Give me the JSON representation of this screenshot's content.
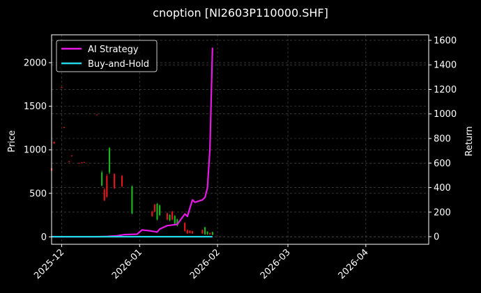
{
  "chart_data": {
    "type": "candlestick+line",
    "title": "cnoption [NI2603P110000.SHF]",
    "xlabel": "",
    "ylabel_left": "Price",
    "ylabel_right": "Return",
    "x_start": "2025-11-27",
    "x_end": "2026-04-26",
    "x_ticks": [
      "2025-12",
      "2026-01",
      "2026-02",
      "2026-03",
      "2026-04"
    ],
    "y_left_ticks": [
      0,
      500,
      1000,
      1500,
      2000
    ],
    "y_left_lim": [
      -85,
      2320
    ],
    "y_right_ticks": [
      0,
      200,
      400,
      600,
      800,
      1000,
      1200,
      1400,
      1600
    ],
    "y_right_lim": [
      -62,
      1645
    ],
    "grid": true,
    "legend_position": "top-left",
    "colors": {
      "background": "#000000",
      "up": "#1db31d",
      "down": "#e01818",
      "ai_strategy": "#e619e6",
      "buy_and_hold": "#22d8e6",
      "axis": "#ffffff",
      "grid": "#555555"
    },
    "series": [
      {
        "name": "AI Strategy",
        "points": [
          [
            "2025-11-27",
            0
          ],
          [
            "2025-12-01",
            0
          ],
          [
            "2025-12-15",
            0
          ],
          [
            "2025-12-19",
            2
          ],
          [
            "2025-12-23",
            7
          ],
          [
            "2025-12-26",
            17
          ],
          [
            "2025-12-31",
            20
          ],
          [
            "2026-01-02",
            55
          ],
          [
            "2026-01-05",
            48
          ],
          [
            "2026-01-08",
            38
          ],
          [
            "2026-01-09",
            62
          ],
          [
            "2026-01-12",
            90
          ],
          [
            "2026-01-14",
            95
          ],
          [
            "2026-01-16",
            100
          ],
          [
            "2026-01-19",
            185
          ],
          [
            "2026-01-20",
            165
          ],
          [
            "2026-01-22",
            300
          ],
          [
            "2026-01-23",
            280
          ],
          [
            "2026-01-26",
            300
          ],
          [
            "2026-01-27",
            320
          ],
          [
            "2026-01-28",
            398
          ],
          [
            "2026-01-29",
            720
          ],
          [
            "2026-01-30",
            1540
          ]
        ]
      },
      {
        "name": "Buy-and-Hold",
        "points": [
          [
            "2025-11-27",
            0
          ],
          [
            "2026-01-30",
            0
          ]
        ]
      }
    ],
    "candles": [
      {
        "date": "2025-11-27",
        "open": 790,
        "close": 760,
        "high": 790,
        "low": 760
      },
      {
        "date": "2025-11-28",
        "open": 1090,
        "close": 1070,
        "high": 1095,
        "low": 1070
      },
      {
        "date": "2025-12-01",
        "open": 1720,
        "close": 1710,
        "high": 1720,
        "low": 1710
      },
      {
        "date": "2025-12-02",
        "open": 1260,
        "close": 1250,
        "high": 1260,
        "low": 1250
      },
      {
        "date": "2025-12-04",
        "open": 870,
        "close": 860,
        "high": 870,
        "low": 860
      },
      {
        "date": "2025-12-05",
        "open": 935,
        "close": 925,
        "high": 935,
        "low": 925
      },
      {
        "date": "2025-12-08",
        "open": 850,
        "close": 845,
        "high": 850,
        "low": 845
      },
      {
        "date": "2025-12-09",
        "open": 855,
        "close": 850,
        "high": 855,
        "low": 850
      },
      {
        "date": "2025-12-10",
        "open": 860,
        "close": 855,
        "high": 860,
        "low": 855
      },
      {
        "date": "2025-12-15",
        "open": 1405,
        "close": 1400,
        "high": 1405,
        "low": 1400
      },
      {
        "date": "2025-12-17",
        "open": 590,
        "close": 740,
        "high": 760,
        "low": 580
      },
      {
        "date": "2025-12-18",
        "open": 540,
        "close": 420,
        "high": 560,
        "low": 410
      },
      {
        "date": "2025-12-19",
        "open": 700,
        "close": 460,
        "high": 720,
        "low": 450
      },
      {
        "date": "2025-12-20",
        "open": 740,
        "close": 1020,
        "high": 1030,
        "low": 720
      },
      {
        "date": "2025-12-22",
        "open": 720,
        "close": 560,
        "high": 730,
        "low": 550
      },
      {
        "date": "2025-12-25",
        "open": 700,
        "close": 580,
        "high": 710,
        "low": 570
      },
      {
        "date": "2025-12-29",
        "open": 270,
        "close": 580,
        "high": 590,
        "low": 260
      },
      {
        "date": "2026-01-06",
        "open": 290,
        "close": 240,
        "high": 300,
        "low": 230
      },
      {
        "date": "2026-01-07",
        "open": 370,
        "close": 290,
        "high": 380,
        "low": 280
      },
      {
        "date": "2026-01-08",
        "open": 200,
        "close": 380,
        "high": 390,
        "low": 190
      },
      {
        "date": "2026-01-09",
        "open": 250,
        "close": 360,
        "high": 370,
        "low": 240
      },
      {
        "date": "2026-01-12",
        "open": 270,
        "close": 200,
        "high": 280,
        "low": 190
      },
      {
        "date": "2026-01-13",
        "open": 190,
        "close": 250,
        "high": 260,
        "low": 180
      },
      {
        "date": "2026-01-14",
        "open": 290,
        "close": 200,
        "high": 300,
        "low": 190
      },
      {
        "date": "2026-01-15",
        "open": 150,
        "close": 240,
        "high": 250,
        "low": 140
      },
      {
        "date": "2026-01-16",
        "open": 130,
        "close": 200,
        "high": 210,
        "low": 120
      },
      {
        "date": "2026-01-19",
        "open": 160,
        "close": 70,
        "high": 170,
        "low": 60
      },
      {
        "date": "2026-01-20",
        "open": 80,
        "close": 40,
        "high": 85,
        "low": 35
      },
      {
        "date": "2026-01-21",
        "open": 70,
        "close": 45,
        "high": 75,
        "low": 40
      },
      {
        "date": "2026-01-22",
        "open": 65,
        "close": 40,
        "high": 70,
        "low": 35
      },
      {
        "date": "2026-01-26",
        "open": 80,
        "close": 40,
        "high": 85,
        "low": 35
      },
      {
        "date": "2026-01-27",
        "open": 30,
        "close": 110,
        "high": 115,
        "low": 25
      },
      {
        "date": "2026-01-28",
        "open": 30,
        "close": 60,
        "high": 65,
        "low": 25
      },
      {
        "date": "2026-01-29",
        "open": 45,
        "close": 30,
        "high": 50,
        "low": 25
      },
      {
        "date": "2026-01-30",
        "open": 25,
        "close": 55,
        "high": 60,
        "low": 20
      }
    ]
  }
}
